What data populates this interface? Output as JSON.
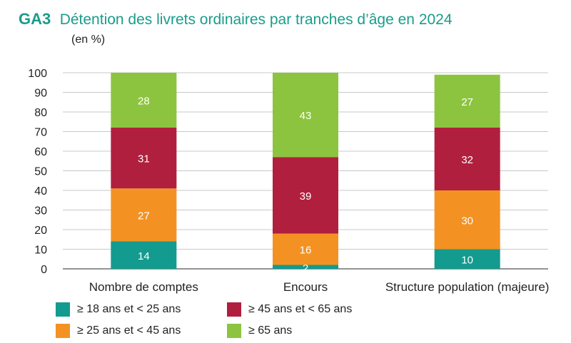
{
  "header": {
    "code": "GA3",
    "title": "Détention des livrets ordinaires par tranches d’âge en 2024",
    "subtitle": "(en %)"
  },
  "chart_data": {
    "type": "bar",
    "stacked": true,
    "categories": [
      "Nombre de comptes",
      "Encours",
      "Structure population (majeure)"
    ],
    "series": [
      {
        "name": "≥ 18 ans et < 25 ans",
        "color": "#139b8f",
        "values": [
          14,
          2,
          10
        ]
      },
      {
        "name": "≥ 25 ans et < 45 ans",
        "color": "#f39223",
        "values": [
          27,
          16,
          30
        ]
      },
      {
        "name": "≥ 45 ans et < 65 ans",
        "color": "#b11f3e",
        "values": [
          31,
          39,
          32
        ]
      },
      {
        "name": "≥ 65 ans",
        "color": "#8cc43f",
        "values": [
          28,
          43,
          27
        ]
      }
    ],
    "ylim": [
      0,
      100
    ],
    "yticks": [
      0,
      10,
      20,
      30,
      40,
      50,
      60,
      70,
      80,
      90,
      100
    ],
    "grid": true,
    "legend_position": "bottom"
  }
}
